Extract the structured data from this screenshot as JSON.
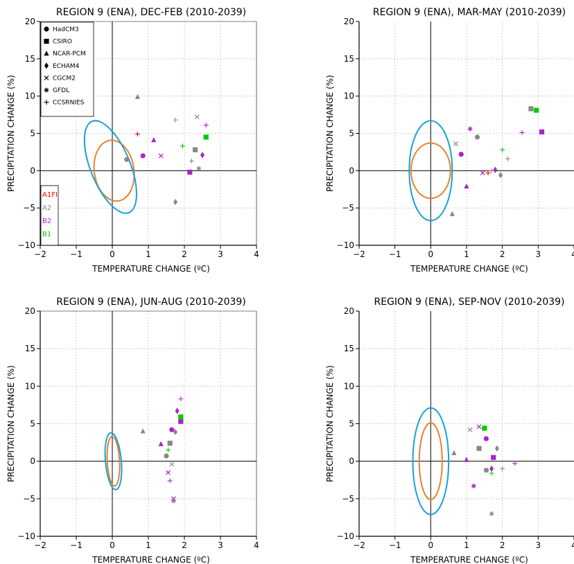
{
  "colors": {
    "A1FI": "#ff0000",
    "A2": "#888888",
    "B2": "#aa22cc",
    "B1": "#00cc00",
    "orange_ellipse": "#e8822a",
    "blue_ellipse": "#1aa0d8"
  },
  "legend": {
    "models": [
      {
        "name": "HadCM3",
        "marker": "circle"
      },
      {
        "name": "CSIRO",
        "marker": "square"
      },
      {
        "name": "NCAR-PCM",
        "marker": "triangle"
      },
      {
        "name": "ECHAM4",
        "marker": "diamond"
      },
      {
        "name": "CGCM2",
        "marker": "x"
      },
      {
        "name": "GFDL",
        "marker": "asterisk"
      },
      {
        "name": "CCSRNIES",
        "marker": "plus"
      }
    ],
    "scenarios": [
      {
        "key": "A1FI",
        "label": "A1FI"
      },
      {
        "key": "A2",
        "label": "A2"
      },
      {
        "key": "B2",
        "label": "B2"
      },
      {
        "key": "B1",
        "label": "B1"
      }
    ]
  },
  "chart_data": [
    {
      "type": "scatter",
      "title": "REGION 9 (ENA), DEC-FEB (2010-2039)",
      "xlabel": "TEMPERATURE CHANGE (ºC)",
      "ylabel": "PRECIPITATION CHANGE (%)",
      "xlim": [
        -2,
        4
      ],
      "ylim": [
        -10,
        20
      ],
      "xticks": [
        -2,
        -1,
        0,
        1,
        2,
        3,
        4
      ],
      "yticks": [
        -10,
        -5,
        0,
        5,
        10,
        15,
        20
      ],
      "grid": true,
      "show_legend": true,
      "ellipses": [
        {
          "color": "orange",
          "cx": 0.05,
          "cy": 0,
          "rx": 0.55,
          "ry": 4.1,
          "angle_deg": -8
        },
        {
          "color": "blue",
          "cx": -0.05,
          "cy": 0.5,
          "rx": 0.55,
          "ry": 6.6,
          "angle_deg": -22
        }
      ],
      "points": [
        {
          "model": "HadCM3",
          "scenario": "A2",
          "x": 0.4,
          "y": 1.5
        },
        {
          "model": "HadCM3",
          "scenario": "B2",
          "x": 0.85,
          "y": 2.0
        },
        {
          "model": "CSIRO",
          "scenario": "A2",
          "x": 2.3,
          "y": 2.8
        },
        {
          "model": "CSIRO",
          "scenario": "B2",
          "x": 2.15,
          "y": -0.2
        },
        {
          "model": "CSIRO",
          "scenario": "B1",
          "x": 2.6,
          "y": 4.5
        },
        {
          "model": "NCAR-PCM",
          "scenario": "A2",
          "x": 0.7,
          "y": 9.9
        },
        {
          "model": "NCAR-PCM",
          "scenario": "B2",
          "x": 1.15,
          "y": 4.1
        },
        {
          "model": "ECHAM4",
          "scenario": "A2",
          "x": 1.75,
          "y": -4.2
        },
        {
          "model": "ECHAM4",
          "scenario": "B2",
          "x": 2.5,
          "y": 2.1
        },
        {
          "model": "CGCM2",
          "scenario": "A2",
          "x": 2.35,
          "y": 7.2
        },
        {
          "model": "CGCM2",
          "scenario": "B2",
          "x": 1.35,
          "y": 2.0
        },
        {
          "model": "GFDL",
          "scenario": "A2",
          "x": 2.4,
          "y": 0.3
        },
        {
          "model": "CCSRNIES",
          "scenario": "A1FI",
          "x": 0.7,
          "y": 4.9
        },
        {
          "model": "CCSRNIES",
          "scenario": "A2",
          "x": 1.75,
          "y": 6.8
        },
        {
          "model": "CCSRNIES",
          "scenario": "B2",
          "x": 2.6,
          "y": 6.1
        },
        {
          "model": "CCSRNIES",
          "scenario": "B1",
          "x": 1.95,
          "y": 3.3
        },
        {
          "model": "CCSRNIES",
          "scenario": "A2",
          "x": 2.2,
          "y": 1.3
        }
      ]
    },
    {
      "type": "scatter",
      "title": "REGION 9 (ENA), MAR-MAY (2010-2039)",
      "xlabel": "TEMPERATURE CHANGE (ºC)",
      "ylabel": "PRECIPITATION CHANGE (%)",
      "xlim": [
        -2,
        4
      ],
      "ylim": [
        -10,
        20
      ],
      "xticks": [
        -2,
        -1,
        0,
        1,
        2,
        3,
        4
      ],
      "yticks": [
        -10,
        -5,
        0,
        5,
        10,
        15,
        20
      ],
      "grid": true,
      "show_legend": false,
      "ellipses": [
        {
          "color": "orange",
          "cx": 0,
          "cy": 0,
          "rx": 0.55,
          "ry": 3.7,
          "angle_deg": 0
        },
        {
          "color": "blue",
          "cx": 0,
          "cy": 0,
          "rx": 0.6,
          "ry": 6.7,
          "angle_deg": 0
        }
      ],
      "points": [
        {
          "model": "HadCM3",
          "scenario": "A2",
          "x": 1.3,
          "y": 4.5
        },
        {
          "model": "HadCM3",
          "scenario": "B2",
          "x": 0.85,
          "y": 2.2
        },
        {
          "model": "CSIRO",
          "scenario": "A2",
          "x": 2.8,
          "y": 8.3
        },
        {
          "model": "CSIRO",
          "scenario": "B1",
          "x": 2.95,
          "y": 8.1
        },
        {
          "model": "CSIRO",
          "scenario": "B2",
          "x": 3.1,
          "y": 5.2
        },
        {
          "model": "NCAR-PCM",
          "scenario": "A2",
          "x": 0.6,
          "y": -5.8
        },
        {
          "model": "NCAR-PCM",
          "scenario": "B2",
          "x": 1.0,
          "y": -2.1
        },
        {
          "model": "ECHAM4",
          "scenario": "A2",
          "x": 1.95,
          "y": -0.6
        },
        {
          "model": "ECHAM4",
          "scenario": "B2",
          "x": 1.8,
          "y": 0.1
        },
        {
          "model": "CGCM2",
          "scenario": "A2",
          "x": 0.7,
          "y": 3.6
        },
        {
          "model": "CGCM2",
          "scenario": "B2",
          "x": 1.45,
          "y": -0.3
        },
        {
          "model": "GFDL",
          "scenario": "B2",
          "x": 1.1,
          "y": 5.6
        },
        {
          "model": "CCSRNIES",
          "scenario": "A1FI",
          "x": 1.6,
          "y": -0.3
        },
        {
          "model": "CCSRNIES",
          "scenario": "B2",
          "x": 2.55,
          "y": 5.1
        },
        {
          "model": "CCSRNIES",
          "scenario": "B1",
          "x": 2.0,
          "y": 2.8
        },
        {
          "model": "CCSRNIES",
          "scenario": "A2",
          "x": 2.15,
          "y": 1.6
        },
        {
          "model": "CCSRNIES",
          "scenario": "A2",
          "x": 1.7,
          "y": 0.0
        }
      ]
    },
    {
      "type": "scatter",
      "title": "REGION 9 (ENA), JUN-AUG (2010-2039)",
      "xlabel": "TEMPERATURE CHANGE (ºC)",
      "ylabel": "PRECIPITATION CHANGE (%)",
      "xlim": [
        -2,
        4
      ],
      "ylim": [
        -10,
        20
      ],
      "xticks": [
        -2,
        -1,
        0,
        1,
        2,
        3,
        4
      ],
      "yticks": [
        -10,
        -5,
        0,
        5,
        10,
        15,
        20
      ],
      "grid": true,
      "show_legend": false,
      "ellipses": [
        {
          "color": "orange",
          "cx": 0.03,
          "cy": 0,
          "rx": 0.17,
          "ry": 3.3,
          "angle_deg": -3
        },
        {
          "color": "blue",
          "cx": 0.03,
          "cy": 0,
          "rx": 0.22,
          "ry": 3.8,
          "angle_deg": -5
        }
      ],
      "points": [
        {
          "model": "HadCM3",
          "scenario": "A2",
          "x": 1.5,
          "y": 0.7
        },
        {
          "model": "HadCM3",
          "scenario": "B2",
          "x": 1.65,
          "y": 4.2
        },
        {
          "model": "CSIRO",
          "scenario": "A2",
          "x": 1.6,
          "y": 2.4
        },
        {
          "model": "CSIRO",
          "scenario": "B2",
          "x": 1.9,
          "y": 5.3
        },
        {
          "model": "CSIRO",
          "scenario": "B1",
          "x": 1.9,
          "y": 5.9
        },
        {
          "model": "NCAR-PCM",
          "scenario": "A2",
          "x": 0.85,
          "y": 4.0
        },
        {
          "model": "NCAR-PCM",
          "scenario": "B2",
          "x": 1.35,
          "y": 2.3
        },
        {
          "model": "ECHAM4",
          "scenario": "A2",
          "x": 1.75,
          "y": 3.9
        },
        {
          "model": "ECHAM4",
          "scenario": "B2",
          "x": 1.8,
          "y": 6.7
        },
        {
          "model": "CGCM2",
          "scenario": "A2",
          "x": 1.65,
          "y": -0.4
        },
        {
          "model": "CGCM2",
          "scenario": "B2",
          "x": 1.55,
          "y": -1.5
        },
        {
          "model": "CGCM2",
          "scenario": "B2",
          "x": 1.7,
          "y": -5.0
        },
        {
          "model": "GFDL",
          "scenario": "A2",
          "x": 1.7,
          "y": -5.3
        },
        {
          "model": "CCSRNIES",
          "scenario": "B2",
          "x": 1.9,
          "y": 8.3
        },
        {
          "model": "CCSRNIES",
          "scenario": "B1",
          "x": 1.55,
          "y": 1.5
        },
        {
          "model": "CCSRNIES",
          "scenario": "B2",
          "x": 1.6,
          "y": -2.6
        }
      ]
    },
    {
      "type": "scatter",
      "title": "REGION 9 (ENA), SEP-NOV (2010-2039)",
      "xlabel": "TEMPERATURE CHANGE (ºC)",
      "ylabel": "PRECIPITATION CHANGE (%)",
      "xlim": [
        -2,
        4
      ],
      "ylim": [
        -10,
        20
      ],
      "xticks": [
        -2,
        -1,
        0,
        1,
        2,
        3,
        4
      ],
      "yticks": [
        -10,
        -5,
        0,
        5,
        10,
        15,
        20
      ],
      "grid": true,
      "show_legend": false,
      "ellipses": [
        {
          "color": "orange",
          "cx": 0,
          "cy": 0,
          "rx": 0.32,
          "ry": 5.1,
          "angle_deg": 0
        },
        {
          "color": "blue",
          "cx": 0,
          "cy": 0,
          "rx": 0.5,
          "ry": 7.1,
          "angle_deg": 0
        }
      ],
      "points": [
        {
          "model": "HadCM3",
          "scenario": "B2",
          "x": 1.55,
          "y": 3.0
        },
        {
          "model": "HadCM3",
          "scenario": "A2",
          "x": 1.55,
          "y": -1.2
        },
        {
          "model": "CSIRO",
          "scenario": "A2",
          "x": 1.35,
          "y": 1.7
        },
        {
          "model": "CSIRO",
          "scenario": "B1",
          "x": 1.5,
          "y": 4.4
        },
        {
          "model": "CSIRO",
          "scenario": "B2",
          "x": 1.75,
          "y": 0.5
        },
        {
          "model": "NCAR-PCM",
          "scenario": "A2",
          "x": 0.65,
          "y": 1.1
        },
        {
          "model": "NCAR-PCM",
          "scenario": "B2",
          "x": 1.0,
          "y": 0.2
        },
        {
          "model": "ECHAM4",
          "scenario": "A2",
          "x": 1.85,
          "y": 1.7
        },
        {
          "model": "ECHAM4",
          "scenario": "B2",
          "x": 1.7,
          "y": -1.0
        },
        {
          "model": "CGCM2",
          "scenario": "A2",
          "x": 1.1,
          "y": 4.2
        },
        {
          "model": "CGCM2",
          "scenario": "B2",
          "x": 1.35,
          "y": 4.6
        },
        {
          "model": "GFDL",
          "scenario": "B2",
          "x": 1.2,
          "y": -3.3
        },
        {
          "model": "GFDL",
          "scenario": "A2",
          "x": 1.7,
          "y": -7.0
        },
        {
          "model": "CCSRNIES",
          "scenario": "B1",
          "x": 1.7,
          "y": -1.6
        },
        {
          "model": "CCSRNIES",
          "scenario": "A2",
          "x": 2.0,
          "y": -1.0
        },
        {
          "model": "CCSRNIES",
          "scenario": "B2",
          "x": 2.35,
          "y": -0.3
        }
      ]
    }
  ]
}
